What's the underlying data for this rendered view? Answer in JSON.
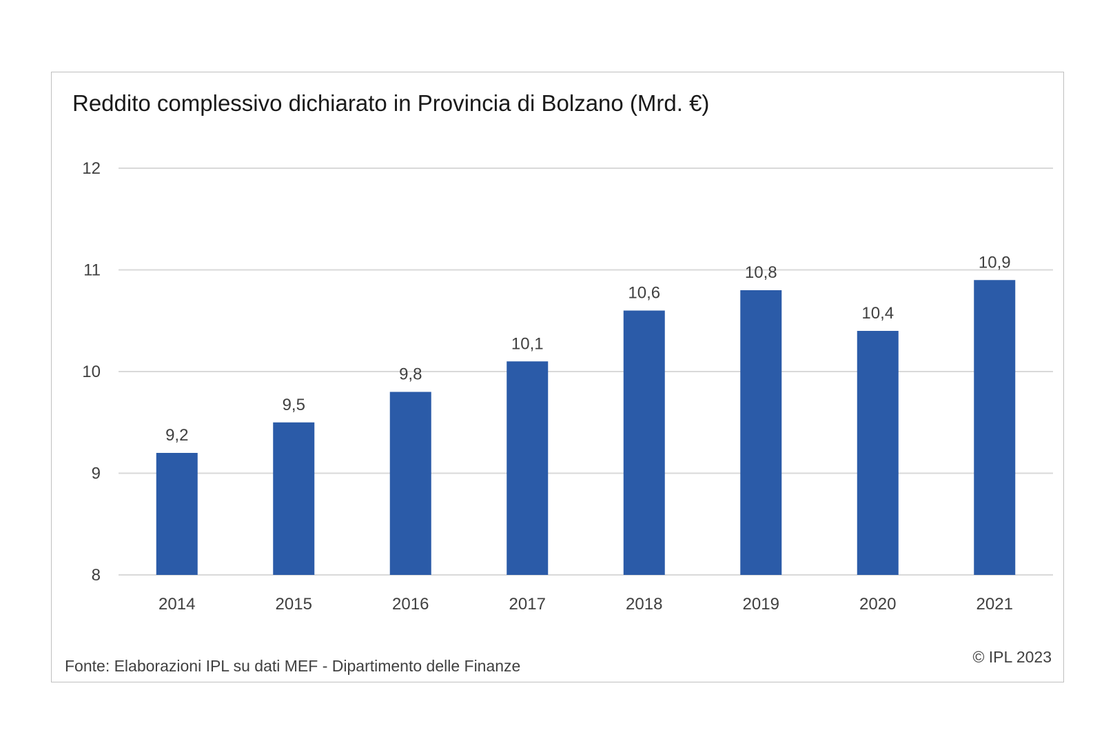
{
  "chart_data": {
    "type": "bar",
    "title": "Reddito complessivo dichiarato in Provincia di Bolzano (Mrd. €)",
    "categories": [
      "2014",
      "2015",
      "2016",
      "2017",
      "2018",
      "2019",
      "2020",
      "2021"
    ],
    "values": [
      9.2,
      9.5,
      9.8,
      10.1,
      10.6,
      10.8,
      10.4,
      10.9
    ],
    "data_labels": [
      "9,2",
      "9,5",
      "9,8",
      "10,1",
      "10,6",
      "10,8",
      "10,4",
      "10,9"
    ],
    "ylim": [
      8,
      12
    ],
    "yticks": [
      8,
      9,
      10,
      11,
      12
    ],
    "ytick_labels": [
      "8",
      "9",
      "10",
      "11",
      "12"
    ],
    "xlabel": "",
    "ylabel": "",
    "grid": true,
    "legend": "none",
    "bar_color": "#2b5ba8",
    "grid_color": "#d9d9d9"
  },
  "footer": {
    "source": "Fonte: Elaborazioni IPL su dati MEF - Dipartimento delle Finanze",
    "copyright": "© IPL  2023"
  }
}
